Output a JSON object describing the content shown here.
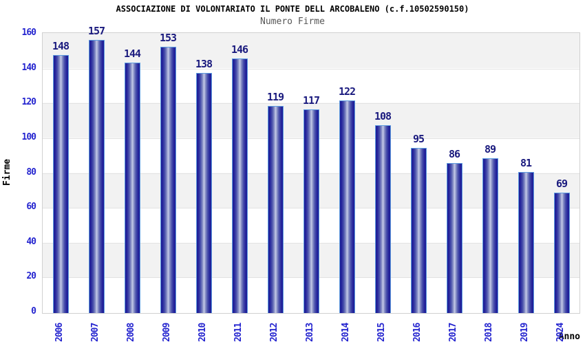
{
  "title": "ASSOCIAZIONE DI VOLONTARIATO IL PONTE DELL ARCOBALENO (c.f.10502590150)",
  "subtitle": "Numero Firme",
  "axis": {
    "y_label": "Firme",
    "x_label": "Anno"
  },
  "chart_data": {
    "type": "bar",
    "title": "ASSOCIAZIONE DI VOLONTARIATO IL PONTE DELL ARCOBALENO (c.f.10502590150)",
    "subtitle": "Numero Firme",
    "xlabel": "Anno",
    "ylabel": "Firme",
    "categories": [
      "2006",
      "2007",
      "2008",
      "2009",
      "2010",
      "2011",
      "2012",
      "2013",
      "2014",
      "2015",
      "2016",
      "2017",
      "2018",
      "2019",
      "2024"
    ],
    "values": [
      148,
      157,
      144,
      153,
      138,
      146,
      119,
      117,
      122,
      108,
      95,
      86,
      89,
      81,
      69
    ],
    "ylim": [
      0,
      160
    ],
    "ytick_step": 20,
    "yticks": [
      0,
      20,
      40,
      60,
      80,
      100,
      120,
      140,
      160
    ],
    "grid": "alternating-horizontal-bands",
    "legend": "none"
  },
  "colors": {
    "tick_label_blue": "#2424cf",
    "value_label_navy": "#1a1a7e",
    "bar_dark": "#1e1e96",
    "bar_highlight": "#c5cbe8",
    "bar_border_light_blue": "#5e9ce0",
    "band_gray": "#f2f2f2",
    "band_white": "#ffffff",
    "plot_border": "#d0d0d0",
    "title_color": "#000000",
    "subtitle_color": "#555555"
  }
}
